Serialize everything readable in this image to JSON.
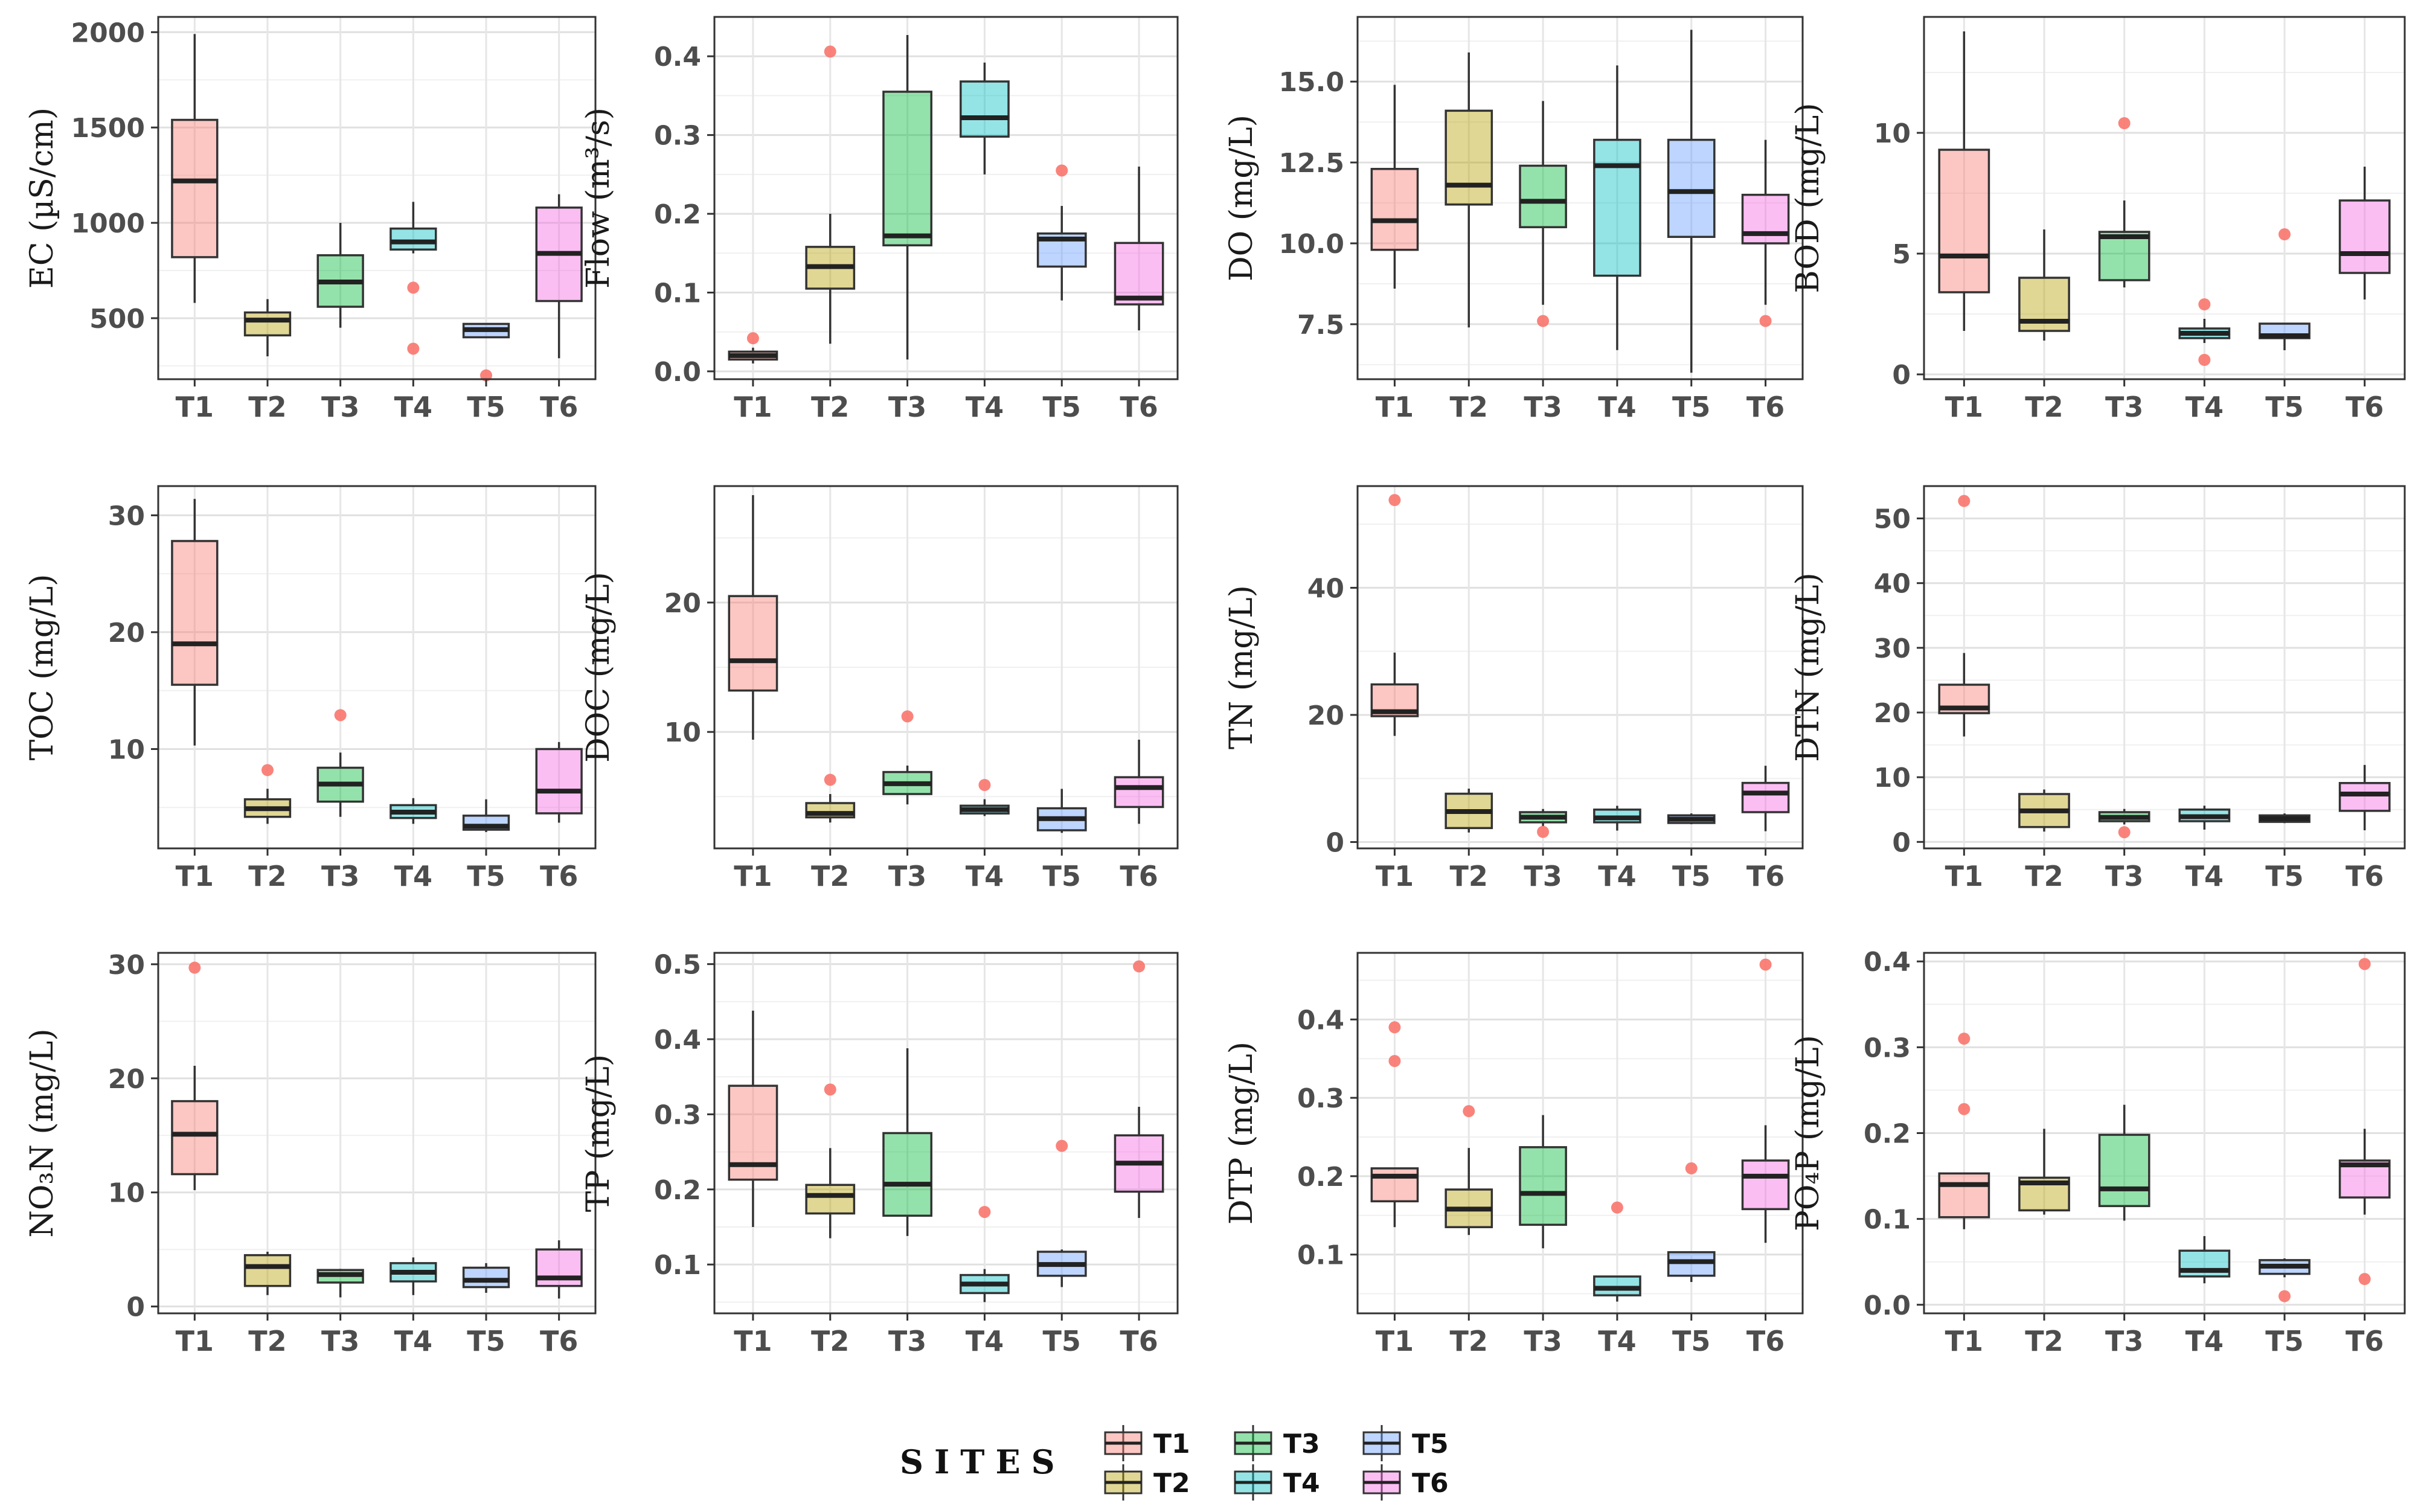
{
  "site_colors": {
    "T1": "#F8766D",
    "T2": "#B79F00",
    "T3": "#00BA38",
    "T4": "#00BFC4",
    "T5": "#619CFF",
    "T6": "#F564E3"
  },
  "outlier_color": "#F8766D",
  "legend": {
    "title": "SITES",
    "entries": [
      "T1",
      "T2",
      "T3",
      "T4",
      "T5",
      "T6"
    ]
  },
  "chart_data": [
    {
      "type": "boxplot",
      "ylabel": "EC (µS/cm)",
      "categories": [
        "T1",
        "T2",
        "T3",
        "T4",
        "T5",
        "T6"
      ],
      "ylim": [
        180,
        2080
      ],
      "yticks": [
        500,
        1000,
        1500,
        2000
      ],
      "boxes": [
        {
          "min": 580,
          "q1": 820,
          "median": 1220,
          "q3": 1540,
          "max": 1990,
          "outliers": []
        },
        {
          "min": 300,
          "q1": 410,
          "median": 490,
          "q3": 530,
          "max": 600,
          "outliers": []
        },
        {
          "min": 450,
          "q1": 560,
          "median": 690,
          "q3": 830,
          "max": 1000,
          "outliers": []
        },
        {
          "min": 840,
          "q1": 860,
          "median": 900,
          "q3": 970,
          "max": 1110,
          "outliers": [
            660,
            340
          ]
        },
        {
          "min": 400,
          "q1": 400,
          "median": 440,
          "q3": 470,
          "max": 470,
          "outliers": [
            200
          ]
        },
        {
          "min": 290,
          "q1": 590,
          "median": 840,
          "q3": 1080,
          "max": 1150,
          "outliers": []
        }
      ]
    },
    {
      "type": "boxplot",
      "ylabel": "Flow (m³/s)",
      "categories": [
        "T1",
        "T2",
        "T3",
        "T4",
        "T5",
        "T6"
      ],
      "ylim": [
        -0.01,
        0.45
      ],
      "yticks": [
        0.0,
        0.1,
        0.2,
        0.3,
        0.4
      ],
      "tick_format": "0.0",
      "boxes": [
        {
          "min": 0.01,
          "q1": 0.015,
          "median": 0.02,
          "q3": 0.025,
          "max": 0.03,
          "outliers": [
            0.042
          ]
        },
        {
          "min": 0.035,
          "q1": 0.105,
          "median": 0.133,
          "q3": 0.158,
          "max": 0.2,
          "outliers": [
            0.406
          ]
        },
        {
          "min": 0.015,
          "q1": 0.16,
          "median": 0.172,
          "q3": 0.355,
          "max": 0.427,
          "outliers": []
        },
        {
          "min": 0.25,
          "q1": 0.298,
          "median": 0.322,
          "q3": 0.368,
          "max": 0.392,
          "outliers": []
        },
        {
          "min": 0.09,
          "q1": 0.133,
          "median": 0.168,
          "q3": 0.175,
          "max": 0.21,
          "outliers": [
            0.255
          ]
        },
        {
          "min": 0.052,
          "q1": 0.085,
          "median": 0.093,
          "q3": 0.163,
          "max": 0.26,
          "outliers": []
        }
      ]
    },
    {
      "type": "boxplot",
      "ylabel": "DO (mg/L)",
      "categories": [
        "T1",
        "T2",
        "T3",
        "T4",
        "T5",
        "T6"
      ],
      "ylim": [
        5.8,
        17.0
      ],
      "yticks": [
        7.5,
        10.0,
        12.5,
        15.0
      ],
      "tick_format": "0.0",
      "boxes": [
        {
          "min": 8.6,
          "q1": 9.8,
          "median": 10.7,
          "q3": 12.3,
          "max": 14.9,
          "outliers": []
        },
        {
          "min": 7.4,
          "q1": 11.2,
          "median": 11.8,
          "q3": 14.1,
          "max": 15.9,
          "outliers": []
        },
        {
          "min": 8.1,
          "q1": 10.5,
          "median": 11.3,
          "q3": 12.4,
          "max": 14.4,
          "outliers": [
            7.6
          ]
        },
        {
          "min": 6.7,
          "q1": 9.0,
          "median": 12.4,
          "q3": 13.2,
          "max": 15.5,
          "outliers": []
        },
        {
          "min": 6.0,
          "q1": 10.2,
          "median": 11.6,
          "q3": 13.2,
          "max": 16.6,
          "outliers": []
        },
        {
          "min": 8.1,
          "q1": 10.0,
          "median": 10.3,
          "q3": 11.5,
          "max": 13.2,
          "outliers": [
            7.6
          ]
        }
      ]
    },
    {
      "type": "boxplot",
      "ylabel": "BOD (mg/L)",
      "categories": [
        "T1",
        "T2",
        "T3",
        "T4",
        "T5",
        "T6"
      ],
      "ylim": [
        -0.2,
        14.8
      ],
      "yticks": [
        0,
        5,
        10
      ],
      "boxes": [
        {
          "min": 1.8,
          "q1": 3.4,
          "median": 4.9,
          "q3": 9.3,
          "max": 14.2,
          "outliers": []
        },
        {
          "min": 1.4,
          "q1": 1.8,
          "median": 2.2,
          "q3": 4.0,
          "max": 6.0,
          "outliers": []
        },
        {
          "min": 3.6,
          "q1": 3.9,
          "median": 5.7,
          "q3": 5.9,
          "max": 7.2,
          "outliers": [
            10.4
          ]
        },
        {
          "min": 1.3,
          "q1": 1.5,
          "median": 1.7,
          "q3": 1.9,
          "max": 2.3,
          "outliers": [
            2.9,
            0.6
          ]
        },
        {
          "min": 1.0,
          "q1": 1.5,
          "median": 1.6,
          "q3": 2.1,
          "max": 2.1,
          "outliers": [
            5.8
          ]
        },
        {
          "min": 3.1,
          "q1": 4.2,
          "median": 5.0,
          "q3": 7.2,
          "max": 8.6,
          "outliers": []
        }
      ]
    },
    {
      "type": "boxplot",
      "ylabel": "TOC (mg/L)",
      "categories": [
        "T1",
        "T2",
        "T3",
        "T4",
        "T5",
        "T6"
      ],
      "ylim": [
        1.5,
        32.5
      ],
      "yticks": [
        10,
        20,
        30
      ],
      "boxes": [
        {
          "min": 10.3,
          "q1": 15.5,
          "median": 19.0,
          "q3": 27.8,
          "max": 31.4,
          "outliers": []
        },
        {
          "min": 3.6,
          "q1": 4.2,
          "median": 4.9,
          "q3": 5.7,
          "max": 6.6,
          "outliers": [
            8.2
          ]
        },
        {
          "min": 4.2,
          "q1": 5.5,
          "median": 7.0,
          "q3": 8.4,
          "max": 9.7,
          "outliers": [
            12.9
          ]
        },
        {
          "min": 3.6,
          "q1": 4.1,
          "median": 4.6,
          "q3": 5.2,
          "max": 5.8,
          "outliers": []
        },
        {
          "min": 2.9,
          "q1": 3.1,
          "median": 3.4,
          "q3": 4.3,
          "max": 5.7,
          "outliers": []
        },
        {
          "min": 3.7,
          "q1": 4.5,
          "median": 6.4,
          "q3": 10.0,
          "max": 10.6,
          "outliers": []
        }
      ]
    },
    {
      "type": "boxplot",
      "ylabel": "DOC (mg/L)",
      "categories": [
        "T1",
        "T2",
        "T3",
        "T4",
        "T5",
        "T6"
      ],
      "ylim": [
        1.0,
        29.0
      ],
      "yticks": [
        10,
        20
      ],
      "boxes": [
        {
          "min": 9.4,
          "q1": 13.2,
          "median": 15.5,
          "q3": 20.5,
          "max": 28.3,
          "outliers": []
        },
        {
          "min": 3.0,
          "q1": 3.4,
          "median": 3.7,
          "q3": 4.5,
          "max": 5.2,
          "outliers": [
            6.3
          ]
        },
        {
          "min": 4.4,
          "q1": 5.2,
          "median": 6.0,
          "q3": 6.9,
          "max": 7.4,
          "outliers": [
            11.2
          ]
        },
        {
          "min": 3.5,
          "q1": 3.7,
          "median": 4.0,
          "q3": 4.3,
          "max": 4.8,
          "outliers": [
            5.9
          ]
        },
        {
          "min": 2.2,
          "q1": 2.4,
          "median": 3.3,
          "q3": 4.1,
          "max": 5.6,
          "outliers": []
        },
        {
          "min": 2.9,
          "q1": 4.2,
          "median": 5.7,
          "q3": 6.5,
          "max": 9.4,
          "outliers": []
        }
      ]
    },
    {
      "type": "boxplot",
      "ylabel": "TN (mg/L)",
      "categories": [
        "T1",
        "T2",
        "T3",
        "T4",
        "T5",
        "T6"
      ],
      "ylim": [
        -1.0,
        56.0
      ],
      "yticks": [
        0,
        20,
        40
      ],
      "boxes": [
        {
          "min": 16.7,
          "q1": 19.8,
          "median": 20.5,
          "q3": 24.8,
          "max": 29.8,
          "outliers": [
            53.8
          ]
        },
        {
          "min": 1.5,
          "q1": 2.2,
          "median": 4.8,
          "q3": 7.6,
          "max": 8.4,
          "outliers": []
        },
        {
          "min": 2.5,
          "q1": 3.1,
          "median": 3.9,
          "q3": 4.7,
          "max": 5.2,
          "outliers": [
            1.6
          ]
        },
        {
          "min": 1.8,
          "q1": 3.1,
          "median": 3.8,
          "q3": 5.1,
          "max": 5.7,
          "outliers": []
        },
        {
          "min": 2.8,
          "q1": 3.0,
          "median": 3.6,
          "q3": 4.2,
          "max": 4.5,
          "outliers": []
        },
        {
          "min": 1.7,
          "q1": 4.7,
          "median": 7.7,
          "q3": 9.3,
          "max": 12.0,
          "outliers": []
        }
      ]
    },
    {
      "type": "boxplot",
      "ylabel": "DTN (mg/L)",
      "categories": [
        "T1",
        "T2",
        "T3",
        "T4",
        "T5",
        "T6"
      ],
      "ylim": [
        -1.0,
        55.0
      ],
      "yticks": [
        0,
        10,
        20,
        30,
        40,
        50
      ],
      "boxes": [
        {
          "min": 16.3,
          "q1": 19.9,
          "median": 20.7,
          "q3": 24.3,
          "max": 29.2,
          "outliers": [
            52.7
          ]
        },
        {
          "min": 1.6,
          "q1": 2.3,
          "median": 4.8,
          "q3": 7.4,
          "max": 8.1,
          "outliers": []
        },
        {
          "min": 2.7,
          "q1": 3.2,
          "median": 3.8,
          "q3": 4.6,
          "max": 5.1,
          "outliers": [
            1.5
          ]
        },
        {
          "min": 1.9,
          "q1": 3.2,
          "median": 3.9,
          "q3": 5.0,
          "max": 5.6,
          "outliers": []
        },
        {
          "min": 2.9,
          "q1": 3.1,
          "median": 3.6,
          "q3": 4.1,
          "max": 4.4,
          "outliers": []
        },
        {
          "min": 1.8,
          "q1": 4.8,
          "median": 7.4,
          "q3": 9.1,
          "max": 11.9,
          "outliers": []
        }
      ]
    },
    {
      "type": "boxplot",
      "ylabel": "NO₃N (mg/L)",
      "categories": [
        "T1",
        "T2",
        "T3",
        "T4",
        "T5",
        "T6"
      ],
      "ylim": [
        -0.6,
        31.0
      ],
      "yticks": [
        0,
        10,
        20,
        30
      ],
      "boxes": [
        {
          "min": 10.2,
          "q1": 11.6,
          "median": 15.1,
          "q3": 18.0,
          "max": 21.1,
          "outliers": [
            29.7
          ]
        },
        {
          "min": 1.0,
          "q1": 1.8,
          "median": 3.5,
          "q3": 4.5,
          "max": 4.8,
          "outliers": []
        },
        {
          "min": 0.8,
          "q1": 2.1,
          "median": 2.8,
          "q3": 3.2,
          "max": 3.3,
          "outliers": []
        },
        {
          "min": 1.0,
          "q1": 2.2,
          "median": 3.0,
          "q3": 3.8,
          "max": 4.3,
          "outliers": []
        },
        {
          "min": 1.2,
          "q1": 1.7,
          "median": 2.3,
          "q3": 3.4,
          "max": 3.8,
          "outliers": []
        },
        {
          "min": 0.7,
          "q1": 1.8,
          "median": 2.5,
          "q3": 5.0,
          "max": 5.8,
          "outliers": []
        }
      ]
    },
    {
      "type": "boxplot",
      "ylabel": "TP (mg/L)",
      "categories": [
        "T1",
        "T2",
        "T3",
        "T4",
        "T5",
        "T6"
      ],
      "ylim": [
        0.035,
        0.515
      ],
      "yticks": [
        0.1,
        0.2,
        0.3,
        0.4,
        0.5
      ],
      "tick_format": "0.0",
      "boxes": [
        {
          "min": 0.15,
          "q1": 0.213,
          "median": 0.233,
          "q3": 0.338,
          "max": 0.438,
          "outliers": []
        },
        {
          "min": 0.135,
          "q1": 0.168,
          "median": 0.192,
          "q3": 0.206,
          "max": 0.255,
          "outliers": [
            0.333
          ]
        },
        {
          "min": 0.138,
          "q1": 0.165,
          "median": 0.207,
          "q3": 0.275,
          "max": 0.388,
          "outliers": []
        },
        {
          "min": 0.05,
          "q1": 0.062,
          "median": 0.074,
          "q3": 0.086,
          "max": 0.094,
          "outliers": [
            0.17
          ]
        },
        {
          "min": 0.07,
          "q1": 0.085,
          "median": 0.1,
          "q3": 0.117,
          "max": 0.12,
          "outliers": [
            0.258
          ]
        },
        {
          "min": 0.162,
          "q1": 0.197,
          "median": 0.235,
          "q3": 0.272,
          "max": 0.31,
          "outliers": [
            0.497
          ]
        }
      ]
    },
    {
      "type": "boxplot",
      "ylabel": "DTP (mg/L)",
      "categories": [
        "T1",
        "T2",
        "T3",
        "T4",
        "T5",
        "T6"
      ],
      "ylim": [
        0.025,
        0.485
      ],
      "yticks": [
        0.1,
        0.2,
        0.3,
        0.4
      ],
      "tick_format": "0.0",
      "boxes": [
        {
          "min": 0.135,
          "q1": 0.168,
          "median": 0.2,
          "q3": 0.21,
          "max": 0.21,
          "outliers": [
            0.39,
            0.347
          ]
        },
        {
          "min": 0.125,
          "q1": 0.135,
          "median": 0.158,
          "q3": 0.183,
          "max": 0.236,
          "outliers": [
            0.283
          ]
        },
        {
          "min": 0.108,
          "q1": 0.138,
          "median": 0.178,
          "q3": 0.237,
          "max": 0.278,
          "outliers": []
        },
        {
          "min": 0.04,
          "q1": 0.048,
          "median": 0.057,
          "q3": 0.072,
          "max": 0.072,
          "outliers": [
            0.16
          ]
        },
        {
          "min": 0.065,
          "q1": 0.073,
          "median": 0.091,
          "q3": 0.103,
          "max": 0.103,
          "outliers": [
            0.21
          ]
        },
        {
          "min": 0.115,
          "q1": 0.158,
          "median": 0.2,
          "q3": 0.22,
          "max": 0.265,
          "outliers": [
            0.47
          ]
        }
      ]
    },
    {
      "type": "boxplot",
      "ylabel": "PO₄P (mg/L)",
      "categories": [
        "T1",
        "T2",
        "T3",
        "T4",
        "T5",
        "T6"
      ],
      "ylim": [
        -0.01,
        0.41
      ],
      "yticks": [
        0.0,
        0.1,
        0.2,
        0.3,
        0.4
      ],
      "tick_format": "0.0",
      "boxes": [
        {
          "min": 0.088,
          "q1": 0.102,
          "median": 0.14,
          "q3": 0.153,
          "max": 0.153,
          "outliers": [
            0.31,
            0.228
          ]
        },
        {
          "min": 0.105,
          "q1": 0.11,
          "median": 0.142,
          "q3": 0.148,
          "max": 0.205,
          "outliers": []
        },
        {
          "min": 0.098,
          "q1": 0.115,
          "median": 0.135,
          "q3": 0.198,
          "max": 0.233,
          "outliers": []
        },
        {
          "min": 0.025,
          "q1": 0.033,
          "median": 0.04,
          "q3": 0.063,
          "max": 0.08,
          "outliers": []
        },
        {
          "min": 0.032,
          "q1": 0.036,
          "median": 0.045,
          "q3": 0.052,
          "max": 0.054,
          "outliers": [
            0.01
          ]
        },
        {
          "min": 0.105,
          "q1": 0.125,
          "median": 0.163,
          "q3": 0.168,
          "max": 0.205,
          "outliers": [
            0.397,
            0.03
          ]
        }
      ]
    }
  ]
}
